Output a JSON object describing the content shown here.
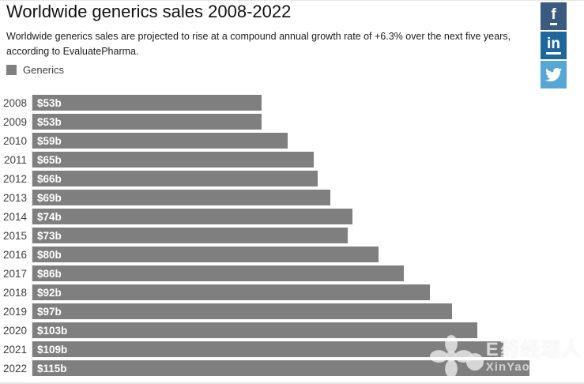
{
  "header": {
    "title": "Worldwide generics sales 2008-2022",
    "subtitle": "Worldwide generics sales are projected to rise at a compound annual growth rate of +6.3% over the next five years, according to EvaluatePharma."
  },
  "legend": {
    "label": "Generics",
    "color": "#7f7f7f"
  },
  "social": {
    "facebook": {
      "glyph": "f",
      "color": "#3a5a80"
    },
    "linkedin": {
      "glyph": "in",
      "color": "#20689c"
    },
    "twitter": {
      "color": "#57a7d6"
    }
  },
  "watermark": {
    "brand": "E药经理人",
    "site": "XinYaoHui.com"
  },
  "chart_data": {
    "type": "bar",
    "orientation": "horizontal",
    "title": "Worldwide generics sales 2008-2022",
    "subtitle": "Worldwide generics sales are projected to rise at a compound annual growth rate of +6.3% over the next five years, according to EvaluatePharma.",
    "legend_entries": [
      "Generics"
    ],
    "legend_position": "top-left",
    "grid": false,
    "xlabel": "",
    "ylabel": "",
    "categories": [
      "2008",
      "2009",
      "2010",
      "2011",
      "2012",
      "2013",
      "2014",
      "2015",
      "2016",
      "2017",
      "2018",
      "2019",
      "2020",
      "2021",
      "2022"
    ],
    "series": [
      {
        "name": "Generics",
        "values": [
          53,
          53,
          59,
          65,
          66,
          69,
          74,
          73,
          80,
          86,
          92,
          97,
          103,
          109,
          115
        ],
        "data_labels": [
          "$53b",
          "$53b",
          "$59b",
          "$65b",
          "$66b",
          "$69b",
          "$74b",
          "$73b",
          "$80b",
          "$86b",
          "$92b",
          "$97b",
          "$103b",
          "$109b",
          "$115b"
        ],
        "unit": "billion USD"
      }
    ],
    "value_axis_range": [
      0,
      120
    ],
    "bar_color": "#7f7f7f",
    "data_label_color": "#ffffff"
  }
}
